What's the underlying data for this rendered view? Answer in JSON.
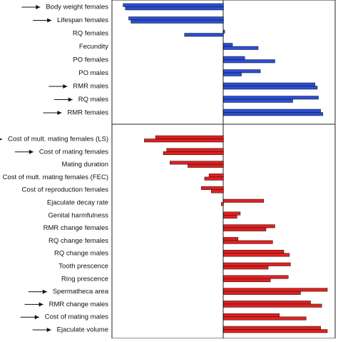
{
  "chart_data": [
    {
      "type": "hbar",
      "orientation": "horizontal",
      "xlim": [
        -1,
        1
      ],
      "categories": [
        "Body weight females",
        "Lifespan females",
        "RQ females",
        "Fecundity",
        "PO females",
        "PO males",
        "RMR males",
        "RQ males",
        "RMR females"
      ],
      "arrows": [
        0,
        1,
        6,
        7,
        8
      ],
      "series": [
        {
          "color": "#2b4fd6",
          "values": [
            -0.9,
            -0.85,
            0.01,
            0.08,
            0.19,
            0.33,
            0.82,
            0.85,
            0.87
          ]
        },
        {
          "color": "#2b4fd6",
          "values": [
            -0.88,
            -0.83,
            -0.35,
            0.31,
            0.46,
            0.16,
            0.84,
            0.62,
            0.89
          ]
        }
      ]
    },
    {
      "type": "hbar",
      "orientation": "horizontal",
      "xlim": [
        -1,
        1
      ],
      "categories": [
        "Cost of mult. mating females (LS)",
        "Cost of mating females",
        "Mating duration",
        "Cost of mult. mating females (FEC)",
        "Cost of reproduction females",
        "Ejaculate decay rate",
        "Genital harmfulness",
        "RMR change females",
        "RQ change females",
        "RQ change males",
        "Tooth prescence",
        "Ring prescence",
        "Spermatheca area",
        "RMR change males",
        "Cost of mating males",
        "Ejaculate volume"
      ],
      "arrows": [
        0,
        1,
        12,
        13,
        14,
        15
      ],
      "series": [
        {
          "color": "#e0201f",
          "values": [
            -0.61,
            -0.51,
            -0.48,
            -0.13,
            -0.2,
            0.36,
            0.15,
            0.46,
            0.13,
            0.54,
            0.6,
            0.58,
            0.93,
            0.78,
            0.5,
            0.87
          ]
        },
        {
          "color": "#e0201f",
          "values": [
            -0.71,
            -0.54,
            -0.32,
            -0.17,
            -0.11,
            -0.02,
            0.12,
            0.38,
            0.44,
            0.59,
            0.4,
            0.42,
            0.69,
            0.88,
            0.74,
            0.93
          ]
        }
      ]
    }
  ]
}
